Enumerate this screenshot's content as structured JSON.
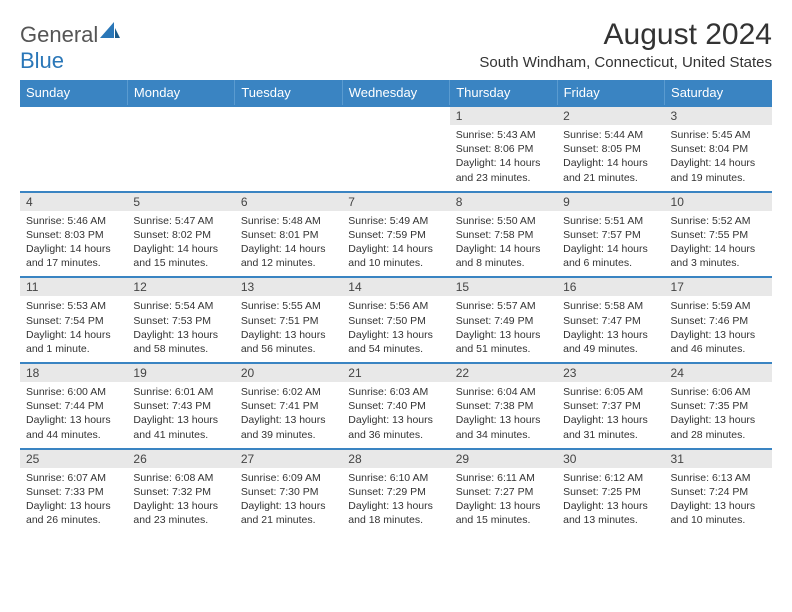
{
  "logo": {
    "main": "General",
    "accent": "Blue"
  },
  "title": "August 2024",
  "location": "South Windham, Connecticut, United States",
  "colors": {
    "header_bg": "#3a84c2",
    "header_text": "#ffffff",
    "daynum_bg": "#e8e8e8",
    "row_border": "#3a84c2",
    "logo_gray": "#555555",
    "logo_blue": "#2a77b8"
  },
  "weekdays": [
    "Sunday",
    "Monday",
    "Tuesday",
    "Wednesday",
    "Thursday",
    "Friday",
    "Saturday"
  ],
  "weeks": [
    [
      {
        "n": "",
        "sr": "",
        "ss": "",
        "dl": ""
      },
      {
        "n": "",
        "sr": "",
        "ss": "",
        "dl": ""
      },
      {
        "n": "",
        "sr": "",
        "ss": "",
        "dl": ""
      },
      {
        "n": "",
        "sr": "",
        "ss": "",
        "dl": ""
      },
      {
        "n": "1",
        "sr": "Sunrise: 5:43 AM",
        "ss": "Sunset: 8:06 PM",
        "dl": "Daylight: 14 hours and 23 minutes."
      },
      {
        "n": "2",
        "sr": "Sunrise: 5:44 AM",
        "ss": "Sunset: 8:05 PM",
        "dl": "Daylight: 14 hours and 21 minutes."
      },
      {
        "n": "3",
        "sr": "Sunrise: 5:45 AM",
        "ss": "Sunset: 8:04 PM",
        "dl": "Daylight: 14 hours and 19 minutes."
      }
    ],
    [
      {
        "n": "4",
        "sr": "Sunrise: 5:46 AM",
        "ss": "Sunset: 8:03 PM",
        "dl": "Daylight: 14 hours and 17 minutes."
      },
      {
        "n": "5",
        "sr": "Sunrise: 5:47 AM",
        "ss": "Sunset: 8:02 PM",
        "dl": "Daylight: 14 hours and 15 minutes."
      },
      {
        "n": "6",
        "sr": "Sunrise: 5:48 AM",
        "ss": "Sunset: 8:01 PM",
        "dl": "Daylight: 14 hours and 12 minutes."
      },
      {
        "n": "7",
        "sr": "Sunrise: 5:49 AM",
        "ss": "Sunset: 7:59 PM",
        "dl": "Daylight: 14 hours and 10 minutes."
      },
      {
        "n": "8",
        "sr": "Sunrise: 5:50 AM",
        "ss": "Sunset: 7:58 PM",
        "dl": "Daylight: 14 hours and 8 minutes."
      },
      {
        "n": "9",
        "sr": "Sunrise: 5:51 AM",
        "ss": "Sunset: 7:57 PM",
        "dl": "Daylight: 14 hours and 6 minutes."
      },
      {
        "n": "10",
        "sr": "Sunrise: 5:52 AM",
        "ss": "Sunset: 7:55 PM",
        "dl": "Daylight: 14 hours and 3 minutes."
      }
    ],
    [
      {
        "n": "11",
        "sr": "Sunrise: 5:53 AM",
        "ss": "Sunset: 7:54 PM",
        "dl": "Daylight: 14 hours and 1 minute."
      },
      {
        "n": "12",
        "sr": "Sunrise: 5:54 AM",
        "ss": "Sunset: 7:53 PM",
        "dl": "Daylight: 13 hours and 58 minutes."
      },
      {
        "n": "13",
        "sr": "Sunrise: 5:55 AM",
        "ss": "Sunset: 7:51 PM",
        "dl": "Daylight: 13 hours and 56 minutes."
      },
      {
        "n": "14",
        "sr": "Sunrise: 5:56 AM",
        "ss": "Sunset: 7:50 PM",
        "dl": "Daylight: 13 hours and 54 minutes."
      },
      {
        "n": "15",
        "sr": "Sunrise: 5:57 AM",
        "ss": "Sunset: 7:49 PM",
        "dl": "Daylight: 13 hours and 51 minutes."
      },
      {
        "n": "16",
        "sr": "Sunrise: 5:58 AM",
        "ss": "Sunset: 7:47 PM",
        "dl": "Daylight: 13 hours and 49 minutes."
      },
      {
        "n": "17",
        "sr": "Sunrise: 5:59 AM",
        "ss": "Sunset: 7:46 PM",
        "dl": "Daylight: 13 hours and 46 minutes."
      }
    ],
    [
      {
        "n": "18",
        "sr": "Sunrise: 6:00 AM",
        "ss": "Sunset: 7:44 PM",
        "dl": "Daylight: 13 hours and 44 minutes."
      },
      {
        "n": "19",
        "sr": "Sunrise: 6:01 AM",
        "ss": "Sunset: 7:43 PM",
        "dl": "Daylight: 13 hours and 41 minutes."
      },
      {
        "n": "20",
        "sr": "Sunrise: 6:02 AM",
        "ss": "Sunset: 7:41 PM",
        "dl": "Daylight: 13 hours and 39 minutes."
      },
      {
        "n": "21",
        "sr": "Sunrise: 6:03 AM",
        "ss": "Sunset: 7:40 PM",
        "dl": "Daylight: 13 hours and 36 minutes."
      },
      {
        "n": "22",
        "sr": "Sunrise: 6:04 AM",
        "ss": "Sunset: 7:38 PM",
        "dl": "Daylight: 13 hours and 34 minutes."
      },
      {
        "n": "23",
        "sr": "Sunrise: 6:05 AM",
        "ss": "Sunset: 7:37 PM",
        "dl": "Daylight: 13 hours and 31 minutes."
      },
      {
        "n": "24",
        "sr": "Sunrise: 6:06 AM",
        "ss": "Sunset: 7:35 PM",
        "dl": "Daylight: 13 hours and 28 minutes."
      }
    ],
    [
      {
        "n": "25",
        "sr": "Sunrise: 6:07 AM",
        "ss": "Sunset: 7:33 PM",
        "dl": "Daylight: 13 hours and 26 minutes."
      },
      {
        "n": "26",
        "sr": "Sunrise: 6:08 AM",
        "ss": "Sunset: 7:32 PM",
        "dl": "Daylight: 13 hours and 23 minutes."
      },
      {
        "n": "27",
        "sr": "Sunrise: 6:09 AM",
        "ss": "Sunset: 7:30 PM",
        "dl": "Daylight: 13 hours and 21 minutes."
      },
      {
        "n": "28",
        "sr": "Sunrise: 6:10 AM",
        "ss": "Sunset: 7:29 PM",
        "dl": "Daylight: 13 hours and 18 minutes."
      },
      {
        "n": "29",
        "sr": "Sunrise: 6:11 AM",
        "ss": "Sunset: 7:27 PM",
        "dl": "Daylight: 13 hours and 15 minutes."
      },
      {
        "n": "30",
        "sr": "Sunrise: 6:12 AM",
        "ss": "Sunset: 7:25 PM",
        "dl": "Daylight: 13 hours and 13 minutes."
      },
      {
        "n": "31",
        "sr": "Sunrise: 6:13 AM",
        "ss": "Sunset: 7:24 PM",
        "dl": "Daylight: 13 hours and 10 minutes."
      }
    ]
  ]
}
